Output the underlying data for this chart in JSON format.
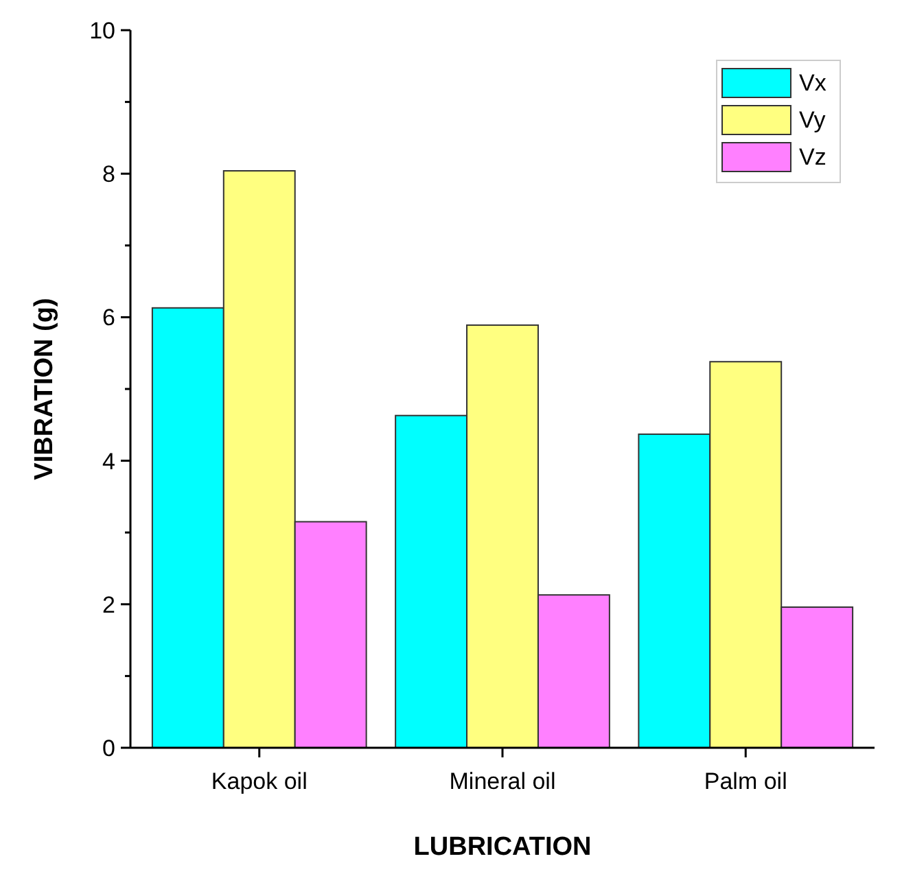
{
  "chart_data": {
    "type": "bar",
    "xlabel": "LUBRICATION",
    "ylabel": "VIBRATION (g)",
    "categories": [
      "Kapok oil",
      "Mineral oil",
      "Palm oil"
    ],
    "series": [
      {
        "name": "Vx",
        "color": "#00ffff",
        "values": [
          6.13,
          4.63,
          4.37
        ]
      },
      {
        "name": "Vy",
        "color": "#ffff80",
        "values": [
          8.04,
          5.89,
          5.38
        ]
      },
      {
        "name": "Vz",
        "color": "#ff80ff",
        "values": [
          3.15,
          2.13,
          1.96
        ]
      }
    ],
    "ylim": [
      0,
      10
    ],
    "yticks": [
      0,
      {
        "value": 1,
        "label": null
      },
      2,
      {
        "value": 3,
        "label": null
      },
      4,
      {
        "value": 5,
        "label": null
      },
      6,
      {
        "value": 7,
        "label": null
      },
      8,
      {
        "value": 9,
        "label": null
      },
      10
    ],
    "grid": false,
    "legend": "top right"
  }
}
